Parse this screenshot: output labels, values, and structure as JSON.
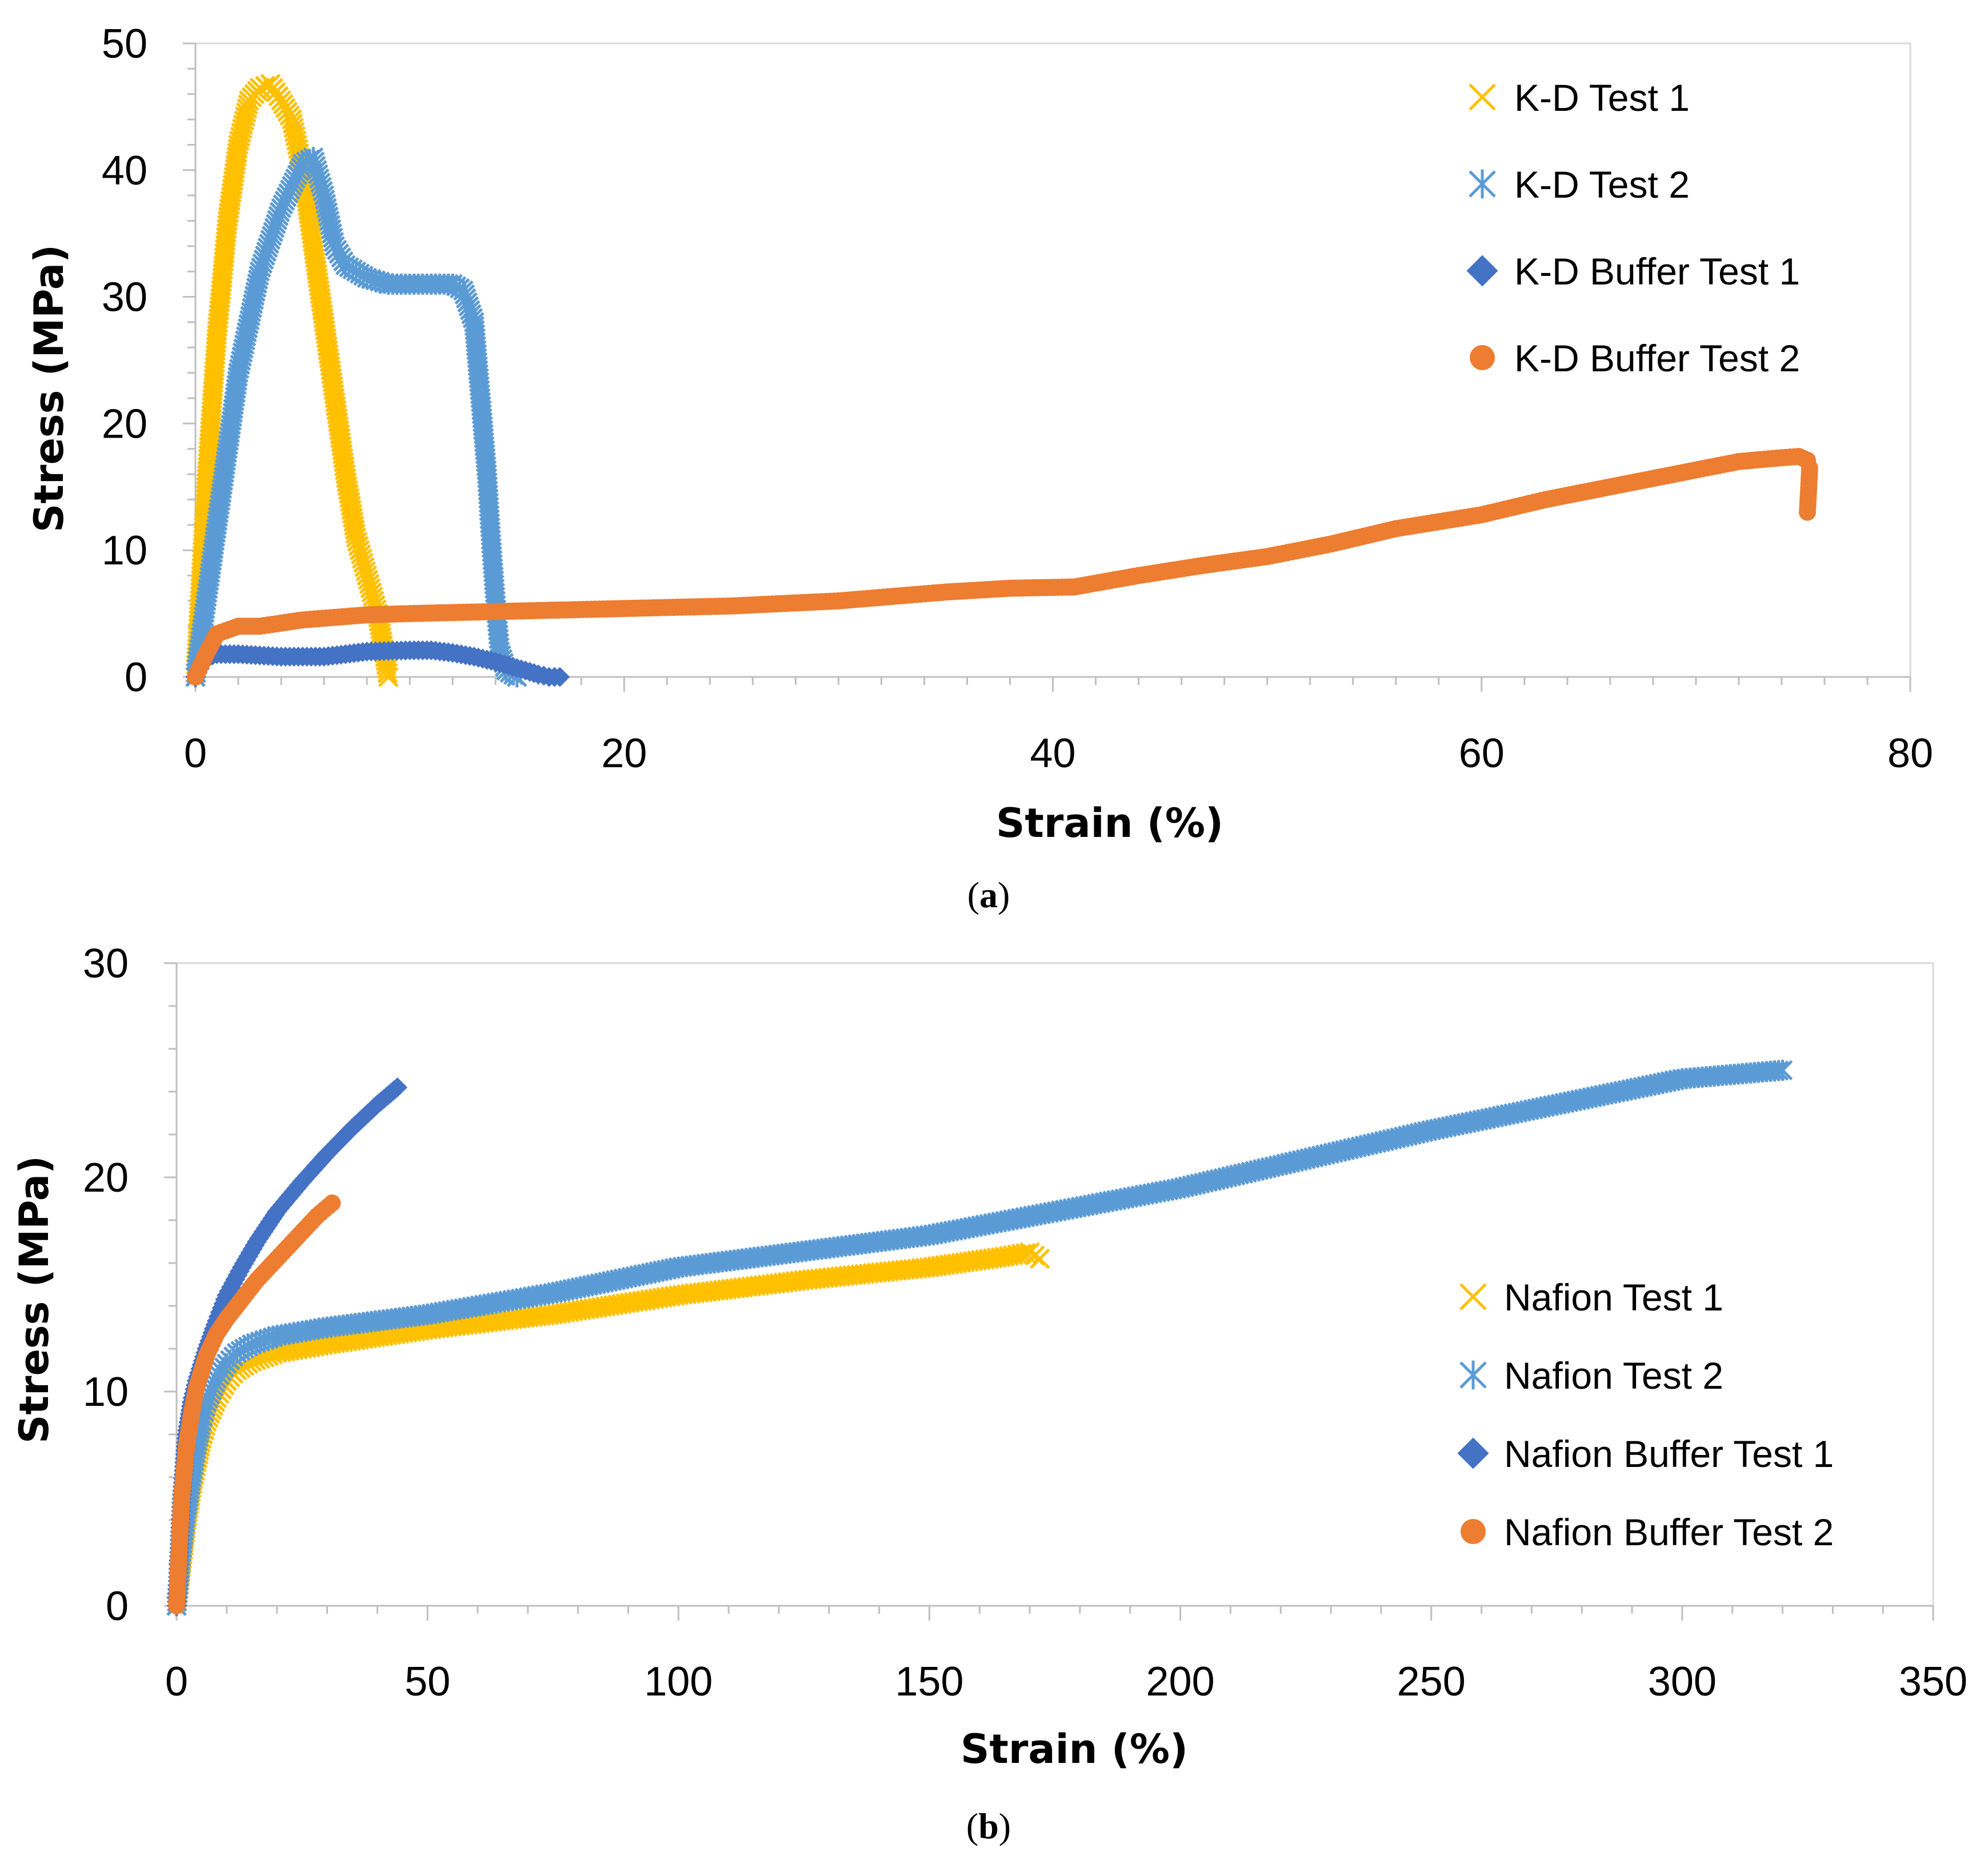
{
  "figure": {
    "caption_a": "(a)",
    "caption_a_letter": "a",
    "caption_b": "(b)",
    "caption_b_letter": "b"
  },
  "chart_data": [
    {
      "id": "a",
      "type": "scatter",
      "title": "",
      "xlabel": "Strain (%)",
      "ylabel": "Stress (MPa)",
      "xlim": [
        0,
        80
      ],
      "ylim": [
        0,
        50
      ],
      "xticks": [
        0,
        20,
        40,
        60,
        80
      ],
      "yticks": [
        0,
        10,
        20,
        30,
        40,
        50
      ],
      "x_minor_step": 2,
      "y_minor_step": 2,
      "grid": false,
      "legend_position": "top-right",
      "series": [
        {
          "name": "K-D Test 1",
          "color": "#FFC000",
          "marker": "x",
          "x": [
            0,
            0.5,
            1,
            1.5,
            2,
            2.5,
            3,
            3.5,
            4,
            4.5,
            5,
            5.5,
            6,
            6.5,
            7,
            7.5,
            8,
            8.5,
            9
          ],
          "y": [
            0,
            15,
            27,
            36,
            42,
            45.5,
            46.5,
            46.8,
            45.5,
            44,
            40,
            34,
            28,
            22,
            16,
            11,
            8,
            5,
            0
          ]
        },
        {
          "name": "K-D Test 2",
          "color": "#5B9BD5",
          "marker": "asterisk",
          "x": [
            0,
            0.5,
            1,
            1.5,
            2,
            3,
            4,
            5,
            5.5,
            6,
            6.5,
            7,
            8,
            9,
            10,
            11,
            12,
            12.5,
            13,
            13.3,
            13.6,
            13.8,
            14,
            14.2,
            14.5,
            15
          ],
          "y": [
            0,
            6,
            12,
            18,
            24,
            32,
            37,
            40.5,
            41,
            38,
            34,
            32.5,
            31.5,
            31,
            31,
            31,
            31,
            30.5,
            28,
            22,
            16,
            10.5,
            6,
            2,
            0.5,
            0
          ]
        },
        {
          "name": "K-D Buffer Test 1",
          "color": "#4472C4",
          "marker": "diamond",
          "x": [
            0,
            0.3,
            0.6,
            1,
            2,
            3,
            4,
            6,
            8,
            10,
            11,
            12,
            13,
            14,
            15,
            16,
            16.5,
            17
          ],
          "y": [
            0,
            1,
            1.6,
            1.8,
            1.8,
            1.7,
            1.6,
            1.6,
            2,
            2.1,
            2.1,
            1.9,
            1.6,
            1.2,
            0.7,
            0.2,
            0,
            0
          ]
        },
        {
          "name": "K-D Buffer Test 2",
          "color": "#ED7D31",
          "marker": "circle",
          "x": [
            0,
            0.5,
            1,
            2,
            3,
            5,
            8,
            10,
            15,
            20,
            25,
            30,
            35,
            38,
            41,
            44,
            47,
            50,
            53,
            56,
            60,
            63,
            66,
            69,
            72,
            74,
            74.8,
            75.2,
            75.3,
            75.3,
            75.2
          ],
          "y": [
            0,
            1.8,
            3.4,
            4,
            4,
            4.5,
            4.9,
            5,
            5.2,
            5.4,
            5.6,
            6,
            6.7,
            7,
            7.1,
            8,
            8.8,
            9.5,
            10.5,
            11.7,
            12.8,
            14,
            15,
            16,
            17,
            17.3,
            17.4,
            17.1,
            16.5,
            16.2,
            13
          ]
        }
      ]
    },
    {
      "id": "b",
      "type": "scatter",
      "title": "",
      "xlabel": "Strain (%)",
      "ylabel": "Stress (MPa)",
      "xlim": [
        0,
        350
      ],
      "ylim": [
        0,
        30
      ],
      "xticks": [
        0,
        50,
        100,
        150,
        200,
        250,
        300,
        350
      ],
      "yticks": [
        0,
        10,
        20,
        30
      ],
      "x_minor_step": 10,
      "y_minor_step": 2,
      "grid": false,
      "legend_position": "bottom-right",
      "series": [
        {
          "name": "Nafion Test 1",
          "color": "#FFC000",
          "marker": "x",
          "x": [
            0,
            1,
            2,
            3,
            4,
            5,
            6,
            8,
            10,
            12,
            15,
            20,
            30,
            50,
            75,
            100,
            125,
            150,
            165,
            170,
            172
          ],
          "y": [
            0,
            2,
            4,
            5.5,
            6.7,
            7.8,
            8.6,
            9.7,
            10.5,
            11,
            11.4,
            11.8,
            12.2,
            12.9,
            13.6,
            14.5,
            15.2,
            15.8,
            16.3,
            16.5,
            16.2
          ]
        },
        {
          "name": "Nafion Test 2",
          "color": "#5B9BD5",
          "marker": "asterisk",
          "x": [
            0,
            1,
            2,
            3,
            4,
            5,
            6,
            8,
            10,
            12,
            15,
            20,
            30,
            50,
            75,
            100,
            150,
            200,
            250,
            300,
            320
          ],
          "y": [
            0,
            2.5,
            4.5,
            6,
            7.5,
            8.6,
            9.5,
            10.6,
            11.3,
            11.8,
            12.2,
            12.6,
            13,
            13.6,
            14.6,
            15.8,
            17.3,
            19.5,
            22.2,
            24.6,
            25
          ]
        },
        {
          "name": "Nafion Buffer Test 1",
          "color": "#4472C4",
          "marker": "diamond",
          "x": [
            0,
            0.5,
            1,
            2,
            3,
            4,
            6,
            8,
            10,
            13,
            16,
            20,
            25,
            30,
            35,
            40,
            44
          ],
          "y": [
            0,
            2.5,
            5,
            8,
            9.5,
            10.5,
            12,
            13.3,
            14.5,
            15.8,
            17,
            18.4,
            19.8,
            21.1,
            22.3,
            23.4,
            24.2
          ]
        },
        {
          "name": "Nafion Buffer Test 2",
          "color": "#ED7D31",
          "marker": "circle",
          "x": [
            0,
            0.5,
            1,
            2,
            3,
            4,
            6,
            8,
            10,
            13,
            16,
            20,
            24,
            28,
            31
          ],
          "y": [
            0,
            2.5,
            5,
            7.5,
            9,
            10.2,
            11.7,
            12.7,
            13.4,
            14.3,
            15.2,
            16.2,
            17.2,
            18.2,
            18.8
          ]
        }
      ]
    }
  ]
}
